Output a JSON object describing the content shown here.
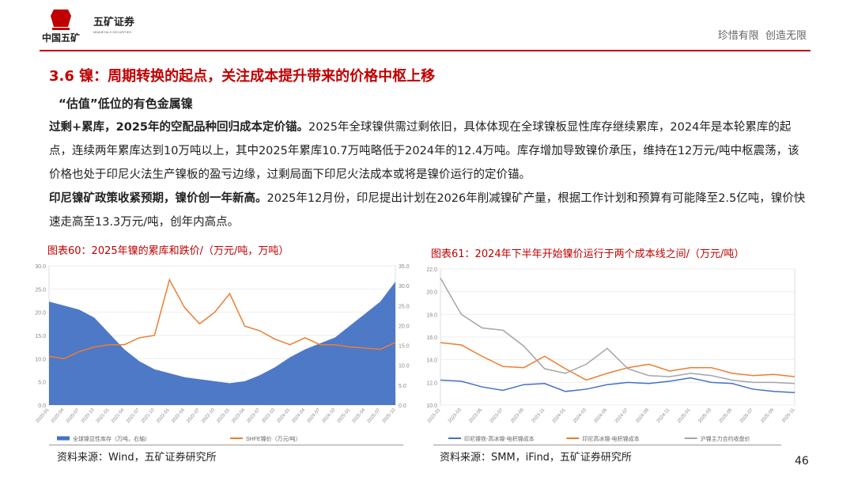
{
  "header": {
    "brand": "中国五矿",
    "company": "五矿证券",
    "company_en": "MINMETALS SECURITIES",
    "slogan": "珍惜有限  创造无限"
  },
  "title": "3.6 镍：周期转换的起点，关注成本提升带来的价格中枢上移",
  "subtitle": "“估值”低位的有色金属镍",
  "paragraphs": [
    {
      "lead": "过剩+累库，2025年的空配品种回归成本定价锚。",
      "text": "2025年全球镍供需过剩依旧，具体体现在全球镍板显性库存继续累库，2024年是本轮累库的起点，连续两年累库达到10万吨以上，其中2025年累库10.7万吨略低于2024年的12.4万吨。库存增加导致镍价承压，维持在12万元/吨中枢震荡，该价格也处于印尼火法生产镍板的盈亏边缘，过剩局面下印尼火法成本或将是镍价运行的定价锚。"
    },
    {
      "lead": "印尼镍矿政策收紧预期，镍价创一年新高。",
      "text": "2025年12月份，印尼提出计划在2026年削减镍矿产量，根据工作计划和预算有可能降至2.5亿吨，镍价快速走高至13.3万元/吨，创年内高点。"
    }
  ],
  "figures": [
    {
      "title": "图表60：2025年镍的累库和跌价/（万元/吨，万吨）",
      "source": "资料来源：Wind，五矿证券研究所",
      "chart_data": {
        "type": "combo",
        "categories": [
          "2020-01",
          "2020-04",
          "2020-07",
          "2020-10",
          "2021-01",
          "2021-04",
          "2021-07",
          "2021-10",
          "2022-01",
          "2022-04",
          "2022-07",
          "2022-10",
          "2023-01",
          "2023-04",
          "2023-07",
          "2023-10",
          "2024-01",
          "2024-04",
          "2024-07",
          "2024-10",
          "2025-01",
          "2025-04",
          "2025-07",
          "2025-10"
        ],
        "ylim": [
          0,
          30
        ],
        "yticks": [
          {
            "value": 0,
            "label": "0.0"
          },
          {
            "value": 5,
            "label": "5.0"
          },
          {
            "value": 10,
            "label": "10.0"
          },
          {
            "value": 15,
            "label": "15.0"
          },
          {
            "value": 20,
            "label": "20.0"
          },
          {
            "value": 25,
            "label": "25.0"
          },
          {
            "value": 30,
            "label": "30.0"
          }
        ],
        "y2lim": [
          0,
          35
        ],
        "y2ticks": [
          {
            "value": 0,
            "label": "0.0"
          },
          {
            "value": 5,
            "label": "5.0"
          },
          {
            "value": 10,
            "label": "10.0"
          },
          {
            "value": 15,
            "label": "15.0"
          },
          {
            "value": 20,
            "label": "20.0"
          },
          {
            "value": 25,
            "label": "25.0"
          },
          {
            "value": 30,
            "label": "30.0"
          },
          {
            "value": 35,
            "label": "35.0"
          }
        ],
        "series": [
          {
            "name": "全球镍显性库存（万吨，右轴）",
            "type": "area",
            "axis": "y2",
            "color": "#4472c4",
            "values": [
              26,
              25,
              24,
              22,
              18,
              14,
              11,
              9,
              8,
              7,
              6.5,
              6,
              5.5,
              6,
              7.5,
              9.5,
              12,
              14,
              15.5,
              17,
              20,
              23,
              26,
              31
            ]
          },
          {
            "name": "SHFE镍价（万元/吨）",
            "type": "line",
            "color": "#ed7d31",
            "values": [
              10.5,
              10,
              11.5,
              12.5,
              13,
              13,
              14.5,
              15,
              27,
              21,
              17.5,
              20,
              24,
              17,
              16,
              14.2,
              13,
              14.5,
              13,
              13,
              12.5,
              12.3,
              12,
              13.5
            ]
          }
        ]
      }
    },
    {
      "title": "图表61：2024年下半年开始镍价运行于两个成本线之间/（万元/吨）",
      "source": "资料来源：SMM，iFind，五矿证券研究所",
      "chart_data": {
        "type": "line",
        "categories": [
          "2023-01",
          "2023-03",
          "2023-05",
          "2023-07",
          "2023-09",
          "2023-11",
          "2024-01",
          "2024-03",
          "2024-05",
          "2024-07",
          "2024-09",
          "2024-11",
          "2025-01",
          "2025-03",
          "2025-05",
          "2025-07",
          "2025-09",
          "2025-11"
        ],
        "ylim": [
          10,
          22
        ],
        "yticks": [
          {
            "value": 10,
            "label": "10.0"
          },
          {
            "value": 12,
            "label": "12.0"
          },
          {
            "value": 14,
            "label": "14.0"
          },
          {
            "value": 16,
            "label": "16.0"
          },
          {
            "value": 18,
            "label": "18.0"
          },
          {
            "value": 20,
            "label": "20.0"
          },
          {
            "value": 22,
            "label": "22.0"
          }
        ],
        "series": [
          {
            "name": "印尼镍铁-高冰镍-电积镍成本",
            "type": "line",
            "color": "#4472c4",
            "values": [
              12.2,
              12.1,
              11.6,
              11.3,
              11.8,
              11.9,
              11.2,
              11.4,
              11.8,
              12,
              11.9,
              12.1,
              12.4,
              12,
              11.9,
              11.4,
              11.2,
              11.1
            ]
          },
          {
            "name": "印尼高冰镍-电积镍成本",
            "type": "line",
            "color": "#ed7d31",
            "values": [
              15.5,
              15.3,
              14.3,
              13.4,
              13.3,
              14.3,
              13.2,
              12.2,
              12.8,
              13.3,
              13.6,
              13,
              13.3,
              13.3,
              12.8,
              12.6,
              12.7,
              12.5
            ]
          },
          {
            "name": "沪镍主力合约收盘价",
            "type": "line",
            "color": "#a5a5a5",
            "values": [
              21.2,
              18,
              16.8,
              16.6,
              15.2,
              13.2,
              12.8,
              13.6,
              15,
              13.2,
              12.6,
              12.5,
              12.8,
              12.6,
              12.2,
              12,
              12,
              11.9
            ]
          }
        ]
      }
    }
  ],
  "page_number": "46"
}
